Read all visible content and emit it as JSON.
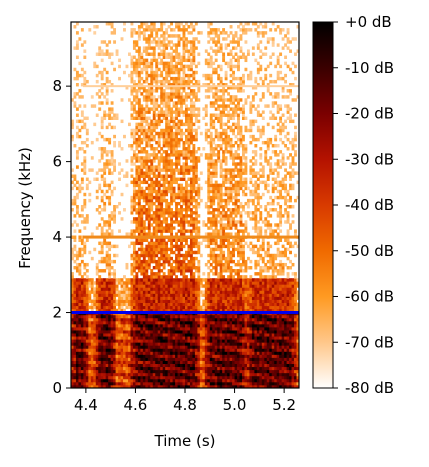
{
  "chart_data": {
    "type": "heatmap",
    "title": "",
    "xlabel": "Time (s)",
    "ylabel": "Frequency (kHz)",
    "xlim": [
      4.34,
      5.26
    ],
    "ylim": [
      0,
      9.7
    ],
    "xticks": [
      4.4,
      4.6,
      4.8,
      5.0,
      5.2
    ],
    "xtick_labels": [
      "4.4",
      "4.6",
      "4.8",
      "5.0",
      "5.2"
    ],
    "yticks": [
      0,
      2,
      4,
      6,
      8
    ],
    "ytick_labels": [
      "0",
      "2",
      "4",
      "6",
      "8"
    ],
    "colorbar": {
      "range_db": [
        -80,
        0
      ],
      "ticks": [
        0,
        -10,
        -20,
        -30,
        -40,
        -50,
        -60,
        -70,
        -80
      ],
      "tick_labels": [
        "+0 dB",
        "-10 dB",
        "-20 dB",
        "-30 dB",
        "-40 dB",
        "-50 dB",
        "-60 dB",
        "-70 dB",
        "-80 dB"
      ],
      "colormap": [
        "#000000",
        "#3a0000",
        "#7a0000",
        "#b41200",
        "#d83a00",
        "#f06a00",
        "#ff9a22",
        "#ffc78a",
        "#ffffff"
      ]
    },
    "voiced_segments_s": [
      [
        4.34,
        4.41
      ],
      [
        4.44,
        4.52
      ],
      [
        4.58,
        4.86
      ],
      [
        4.88,
        5.05
      ],
      [
        5.05,
        5.25
      ]
    ],
    "tone_band_khz": 4.0,
    "tone_band_weak_khz": 8.0,
    "horizontal_line": {
      "frequency_khz": 2.0,
      "color": "#0000ee"
    },
    "grid": false
  }
}
